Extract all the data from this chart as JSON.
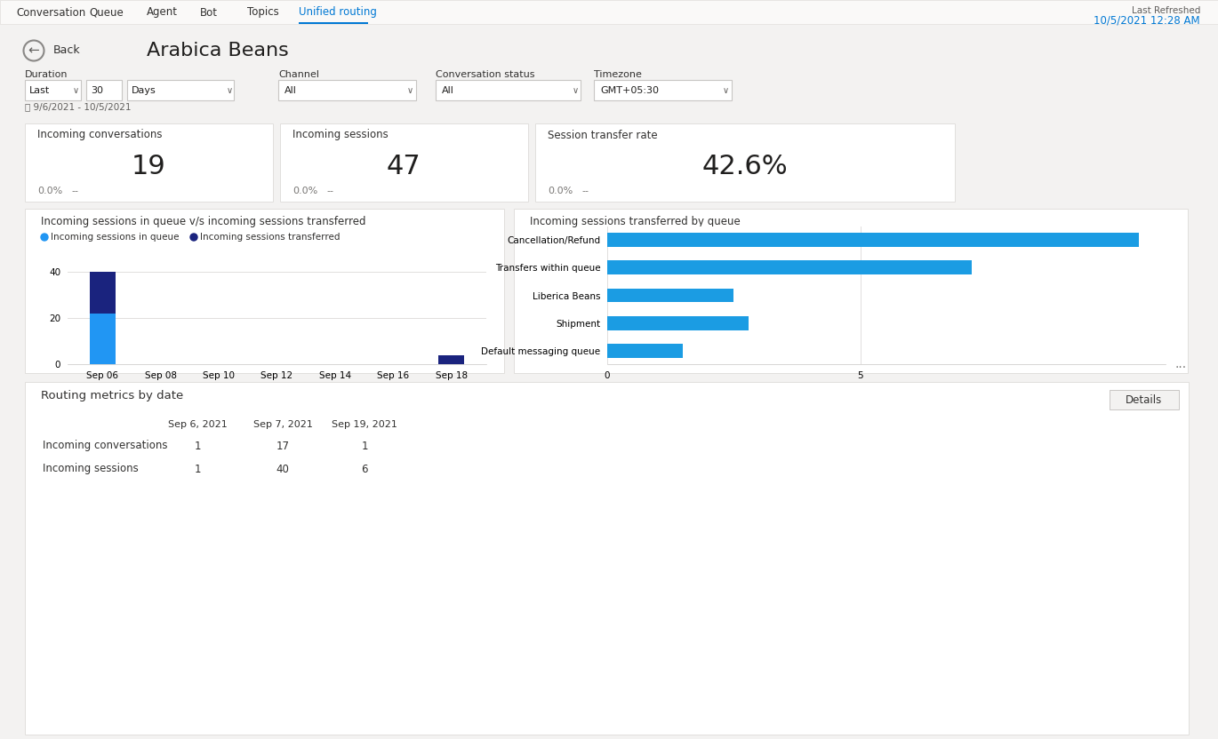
{
  "bg_color": "#f3f2f1",
  "title": "Arabica Beans",
  "nav_tabs": [
    "Conversation",
    "Queue",
    "Agent",
    "Bot",
    "Topics",
    "Unified routing"
  ],
  "active_tab": "Unified routing",
  "last_refreshed_line1": "Last Refreshed",
  "last_refreshed_line2": "10/5/2021 12:28 AM",
  "duration_label": "Duration",
  "channel_label": "Channel",
  "conv_status_label": "Conversation status",
  "timezone_label": "Timezone",
  "duration_vals": [
    "Last",
    "30",
    "Days"
  ],
  "channel_val": "All",
  "conv_status_val": "All",
  "timezone_val": "GMT+05:30",
  "date_range": "9/6/2021 - 10/5/2021",
  "kpi_cards": [
    {
      "label": "Incoming conversations",
      "value": "19",
      "pct": "0.0%",
      "trend": "--"
    },
    {
      "label": "Incoming sessions",
      "value": "47",
      "pct": "0.0%",
      "trend": "--"
    },
    {
      "label": "Session transfer rate",
      "value": "42.6%",
      "pct": "0.0%",
      "trend": "--"
    }
  ],
  "bar_chart_title": "Incoming sessions in queue v/s incoming sessions transferred",
  "bar_legend": [
    "Incoming sessions in queue",
    "Incoming sessions transferred"
  ],
  "bar_legend_colors": [
    "#2196F3",
    "#1A237E"
  ],
  "bar_dates": [
    "Sep 06",
    "Sep 08",
    "Sep 10",
    "Sep 12",
    "Sep 14",
    "Sep 16",
    "Sep 18"
  ],
  "bar_in_queue": [
    22,
    0,
    0,
    0,
    0,
    0,
    0
  ],
  "bar_transferred": [
    18,
    0,
    0,
    0,
    0,
    0,
    4
  ],
  "bar_yticks": [
    0,
    20,
    40
  ],
  "hbar_chart_title": "Incoming sessions transferred by queue",
  "hbar_categories": [
    "Cancellation/Refund",
    "Transfers within queue",
    "Liberica Beans",
    "Shipment",
    "Default messaging queue"
  ],
  "hbar_values": [
    10.5,
    7.2,
    2.5,
    2.8,
    1.5
  ],
  "hbar_color": "#1B9CE3",
  "hbar_xtick_vals": [
    0,
    5
  ],
  "routing_section_title": "Routing metrics by date",
  "details_btn": "Details",
  "table_col_headers": [
    "",
    "Sep 6, 2021",
    "Sep 7, 2021",
    "Sep 19, 2021"
  ],
  "table_rows": [
    [
      "Incoming conversations",
      "1",
      "17",
      "1"
    ],
    [
      "Incoming sessions",
      "1",
      "40",
      "6"
    ]
  ],
  "accent_blue": "#0078d4",
  "text_dark": "#252423",
  "text_gray": "#797775",
  "border_color": "#e1dfdd",
  "white": "#ffffff"
}
